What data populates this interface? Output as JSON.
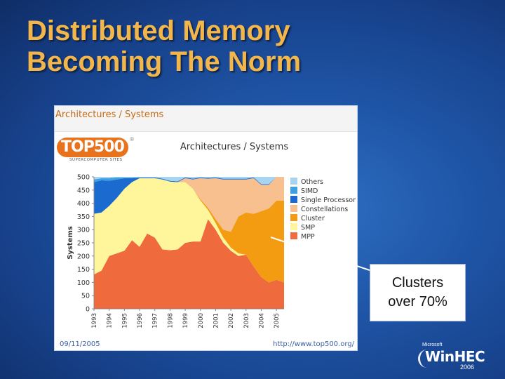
{
  "slide": {
    "title_line1": "Distributed Memory",
    "title_line2": "Becoming The Norm",
    "colors": {
      "title": "#f3b64a",
      "background": "#1f56a8"
    }
  },
  "panel": {
    "header": "Architectures / Systems",
    "footer_date": "09/11/2005",
    "footer_url": "http://www.top500.org/"
  },
  "logo": {
    "name": "TOP500",
    "registered_mark": "®",
    "subtitle": "SUPERCOMPUTER SITES"
  },
  "callout": {
    "line1": "Clusters",
    "line2": "over 70%"
  },
  "branding": {
    "microsoft": "Microsoft",
    "event": "WinHEC",
    "year": "2006"
  },
  "chart_data": {
    "type": "area",
    "title": "Architectures / Systems",
    "ylabel": "Systems",
    "xlabel": "",
    "ylim": [
      0,
      500
    ],
    "yticks": [
      0,
      50,
      100,
      150,
      200,
      250,
      300,
      350,
      400,
      450,
      500
    ],
    "x": [
      1993.0,
      1993.5,
      1994.0,
      1994.5,
      1995.0,
      1995.5,
      1996.0,
      1996.5,
      1997.0,
      1997.5,
      1998.0,
      1998.5,
      1999.0,
      1999.5,
      2000.0,
      2000.5,
      2001.0,
      2001.5,
      2002.0,
      2002.5,
      2003.0,
      2003.5,
      2004.0,
      2004.5,
      2005.0,
      2005.5
    ],
    "xticks": [
      "1993",
      "1994",
      "1995",
      "1996",
      "1997",
      "1998",
      "1999",
      "2000",
      "2001",
      "2002",
      "2003",
      "2004",
      "2005"
    ],
    "legend_position": "right",
    "stack_order": [
      "MPP",
      "SMP",
      "Cluster",
      "Constellations",
      "Single Processor",
      "SIMD",
      "Others"
    ],
    "legend_order": [
      "Others",
      "SIMD",
      "Single Processor",
      "Constellations",
      "Cluster",
      "SMP",
      "MPP"
    ],
    "colors": {
      "Others": "#a8d4f0",
      "SIMD": "#3da0e0",
      "Single Processor": "#1a6ad0",
      "Constellations": "#f7c08e",
      "Cluster": "#f39c12",
      "SMP": "#fff59a",
      "MPP": "#ef6a3c"
    },
    "series": [
      {
        "name": "MPP",
        "values": [
          130,
          145,
          200,
          210,
          220,
          260,
          235,
          285,
          270,
          225,
          222,
          225,
          250,
          255,
          255,
          340,
          300,
          250,
          220,
          200,
          205,
          160,
          120,
          100,
          110,
          100
        ]
      },
      {
        "name": "SMP",
        "values": [
          230,
          220,
          190,
          210,
          235,
          220,
          260,
          210,
          225,
          265,
          260,
          255,
          230,
          200,
          155,
          35,
          25,
          20,
          12,
          10,
          0,
          0,
          0,
          0,
          0,
          0
        ]
      },
      {
        "name": "Cluster",
        "values": [
          0,
          0,
          0,
          0,
          0,
          0,
          0,
          0,
          0,
          0,
          0,
          0,
          0,
          0,
          5,
          8,
          15,
          30,
          60,
          140,
          160,
          200,
          250,
          280,
          300,
          310
        ]
      },
      {
        "name": "Constellations",
        "values": [
          0,
          0,
          0,
          0,
          0,
          0,
          0,
          0,
          0,
          0,
          0,
          0,
          15,
          35,
          80,
          110,
          155,
          190,
          198,
          140,
          125,
          135,
          100,
          90,
          90,
          90
        ]
      },
      {
        "name": "Single Processor",
        "values": [
          120,
          122,
          95,
          70,
          40,
          15,
          3,
          3,
          3,
          3,
          3,
          3,
          3,
          3,
          3,
          3,
          3,
          3,
          3,
          3,
          3,
          3,
          3,
          3,
          0,
          0
        ]
      },
      {
        "name": "SIMD",
        "values": [
          10,
          8,
          10,
          8,
          3,
          3,
          0,
          0,
          0,
          0,
          0,
          0,
          0,
          0,
          0,
          0,
          0,
          0,
          0,
          0,
          0,
          0,
          0,
          0,
          0,
          0
        ]
      },
      {
        "name": "Others",
        "values": [
          10,
          5,
          5,
          2,
          2,
          2,
          2,
          2,
          2,
          7,
          15,
          17,
          2,
          7,
          2,
          4,
          2,
          7,
          7,
          7,
          7,
          2,
          27,
          27,
          0,
          0
        ]
      }
    ]
  }
}
